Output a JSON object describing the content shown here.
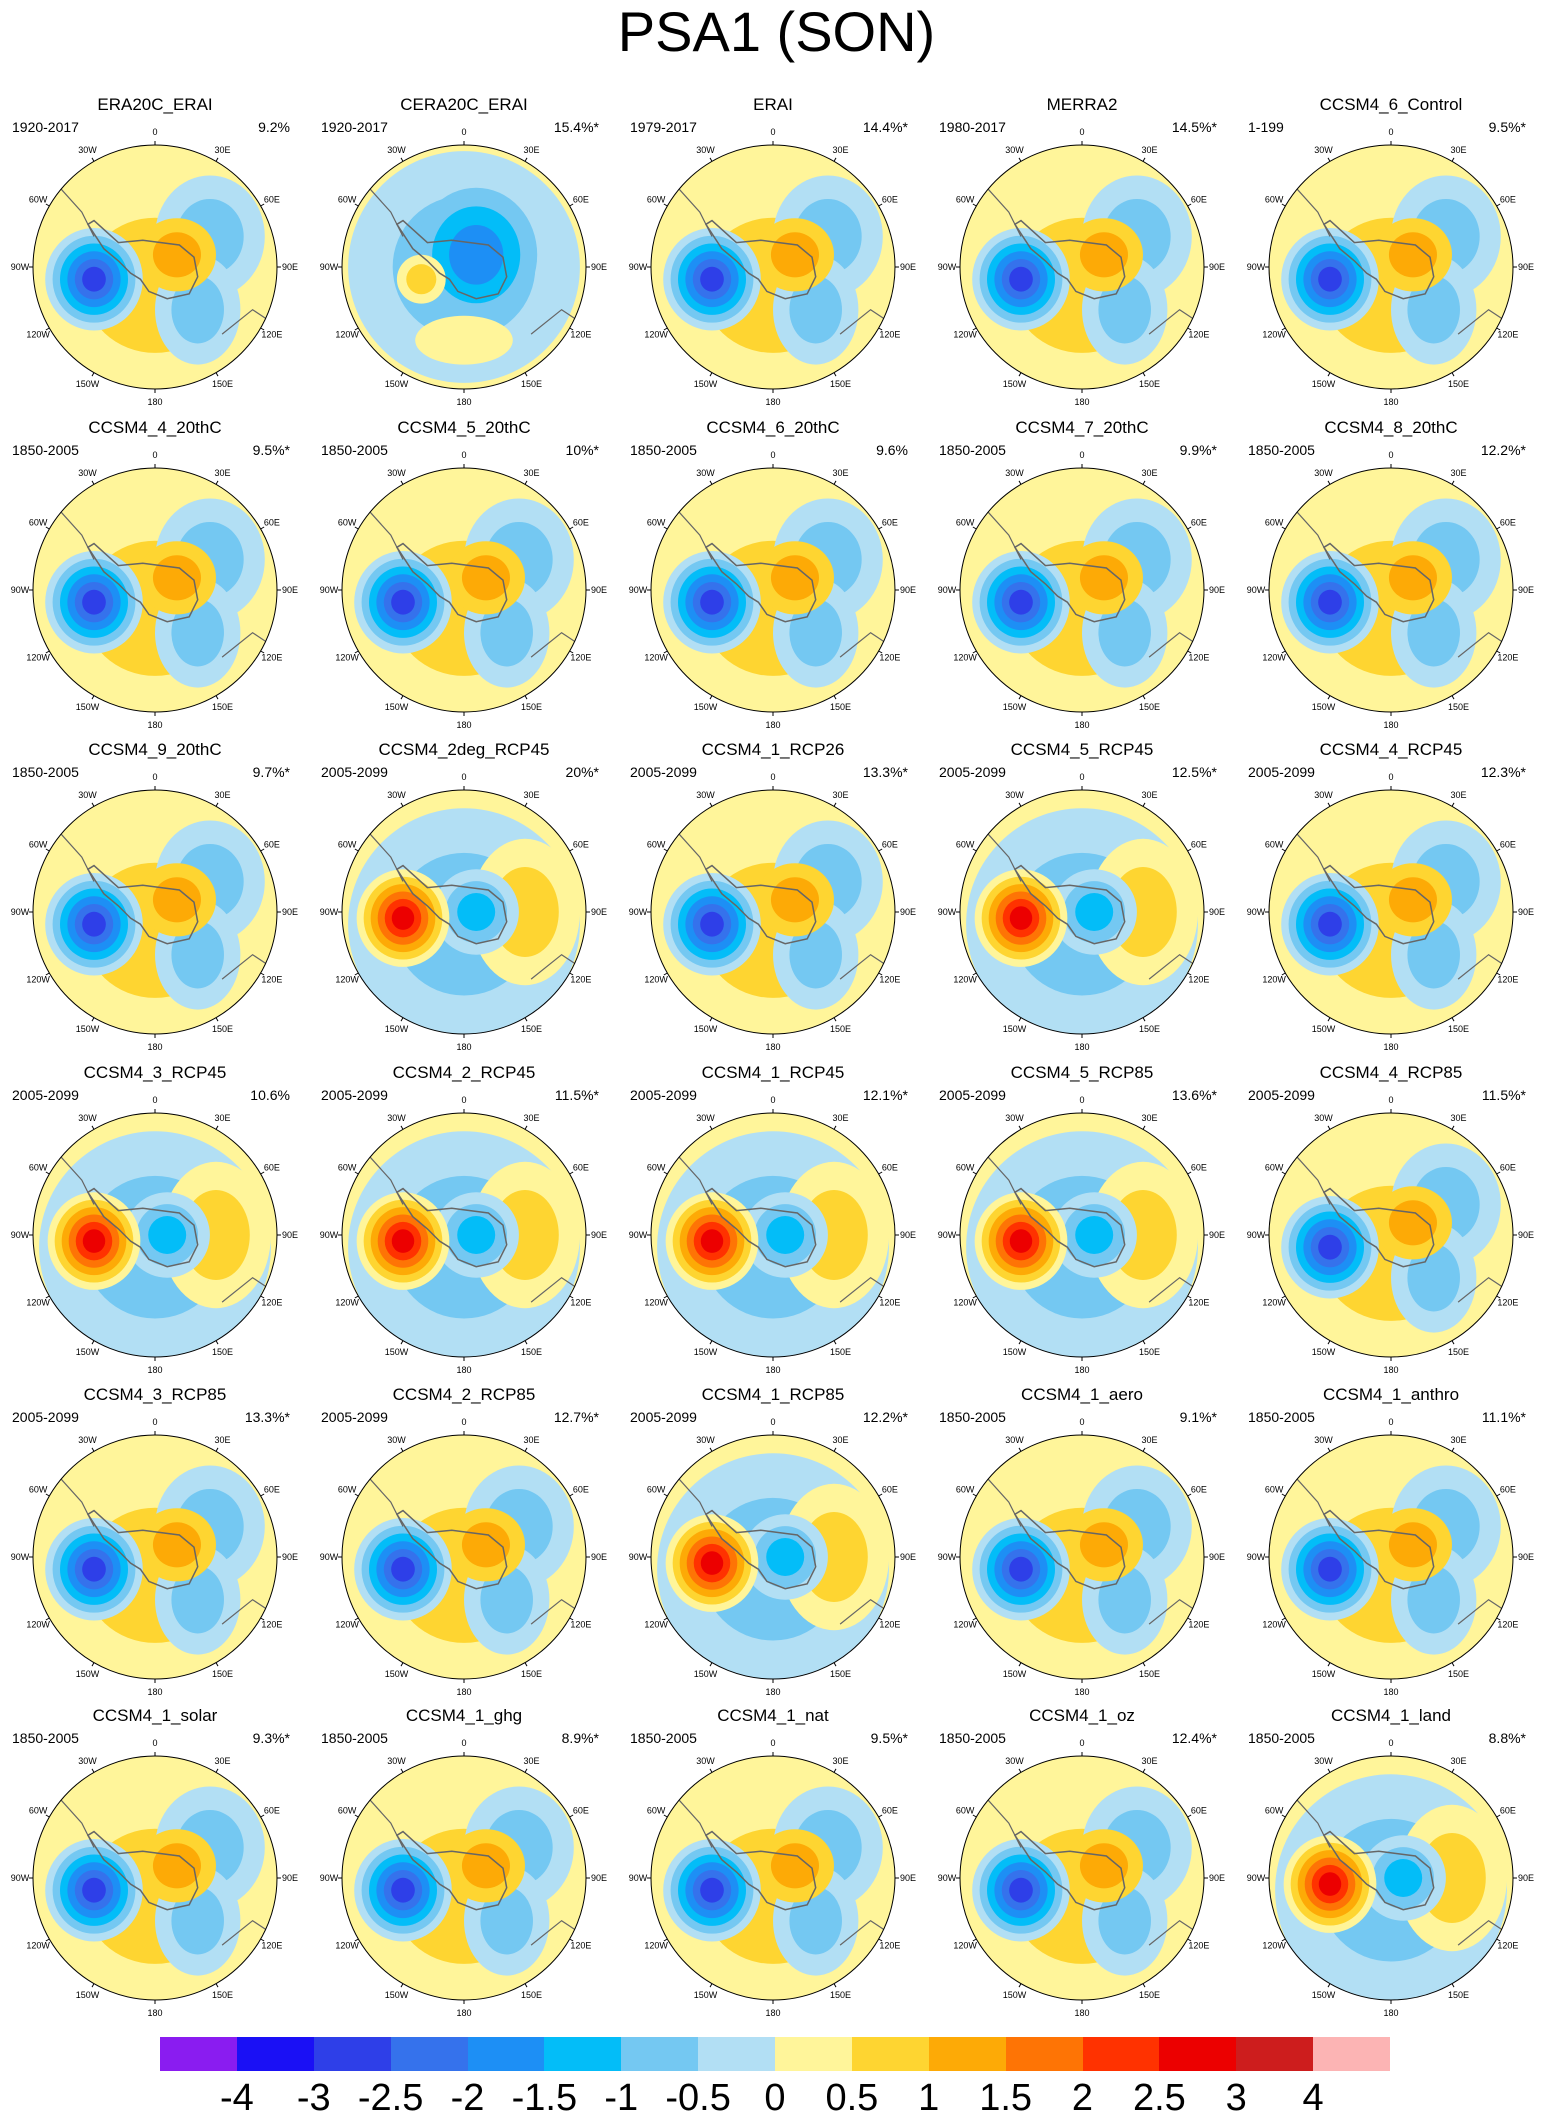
{
  "title": "PSA1 (SON)",
  "lon_labels": [
    "0",
    "30E",
    "60E",
    "90E",
    "120E",
    "150E",
    "180",
    "150W",
    "120W",
    "90W",
    "60W",
    "30W"
  ],
  "panels": [
    {
      "name": "ERA20C_ERAI",
      "period": "1920-2017",
      "variance": "9.2%",
      "pattern": "neg"
    },
    {
      "name": "CERA20C_ERAI",
      "period": "1920-2017",
      "variance": "15.4%*",
      "pattern": "weak"
    },
    {
      "name": "ERAI",
      "period": "1979-2017",
      "variance": "14.4%*",
      "pattern": "neg"
    },
    {
      "name": "MERRA2",
      "period": "1980-2017",
      "variance": "14.5%*",
      "pattern": "neg"
    },
    {
      "name": "CCSM4_6_Control",
      "period": "1-199",
      "variance": "9.5%*",
      "pattern": "neg"
    },
    {
      "name": "CCSM4_4_20thC",
      "period": "1850-2005",
      "variance": "9.5%*",
      "pattern": "neg"
    },
    {
      "name": "CCSM4_5_20thC",
      "period": "1850-2005",
      "variance": "10%*",
      "pattern": "neg"
    },
    {
      "name": "CCSM4_6_20thC",
      "period": "1850-2005",
      "variance": "9.6%",
      "pattern": "neg"
    },
    {
      "name": "CCSM4_7_20thC",
      "period": "1850-2005",
      "variance": "9.9%*",
      "pattern": "neg"
    },
    {
      "name": "CCSM4_8_20thC",
      "period": "1850-2005",
      "variance": "12.2%*",
      "pattern": "neg"
    },
    {
      "name": "CCSM4_9_20thC",
      "period": "1850-2005",
      "variance": "9.7%*",
      "pattern": "neg"
    },
    {
      "name": "CCSM4_2deg_RCP45",
      "period": "2005-2099",
      "variance": "20%*",
      "pattern": "pos"
    },
    {
      "name": "CCSM4_1_RCP26",
      "period": "2005-2099",
      "variance": "13.3%*",
      "pattern": "neg"
    },
    {
      "name": "CCSM4_5_RCP45",
      "period": "2005-2099",
      "variance": "12.5%*",
      "pattern": "pos"
    },
    {
      "name": "CCSM4_4_RCP45",
      "period": "2005-2099",
      "variance": "12.3%*",
      "pattern": "neg"
    },
    {
      "name": "CCSM4_3_RCP45",
      "period": "2005-2099",
      "variance": "10.6%",
      "pattern": "pos"
    },
    {
      "name": "CCSM4_2_RCP45",
      "period": "2005-2099",
      "variance": "11.5%*",
      "pattern": "pos"
    },
    {
      "name": "CCSM4_1_RCP45",
      "period": "2005-2099",
      "variance": "12.1%*",
      "pattern": "pos"
    },
    {
      "name": "CCSM4_5_RCP85",
      "period": "2005-2099",
      "variance": "13.6%*",
      "pattern": "pos"
    },
    {
      "name": "CCSM4_4_RCP85",
      "period": "2005-2099",
      "variance": "11.5%*",
      "pattern": "neg"
    },
    {
      "name": "CCSM4_3_RCP85",
      "period": "2005-2099",
      "variance": "13.3%*",
      "pattern": "neg"
    },
    {
      "name": "CCSM4_2_RCP85",
      "period": "2005-2099",
      "variance": "12.7%*",
      "pattern": "neg"
    },
    {
      "name": "CCSM4_1_RCP85",
      "period": "2005-2099",
      "variance": "12.2%*",
      "pattern": "pos"
    },
    {
      "name": "CCSM4_1_aero",
      "period": "1850-2005",
      "variance": "9.1%*",
      "pattern": "neg"
    },
    {
      "name": "CCSM4_1_anthro",
      "period": "1850-2005",
      "variance": "11.1%*",
      "pattern": "neg"
    },
    {
      "name": "CCSM4_1_solar",
      "period": "1850-2005",
      "variance": "9.3%*",
      "pattern": "neg"
    },
    {
      "name": "CCSM4_1_ghg",
      "period": "1850-2005",
      "variance": "8.9%*",
      "pattern": "neg"
    },
    {
      "name": "CCSM4_1_nat",
      "period": "1850-2005",
      "variance": "9.5%*",
      "pattern": "neg"
    },
    {
      "name": "CCSM4_1_oz",
      "period": "1850-2005",
      "variance": "12.4%*",
      "pattern": "neg"
    },
    {
      "name": "CCSM4_1_land",
      "period": "1850-2005",
      "variance": "8.8%*",
      "pattern": "pos"
    }
  ],
  "colorbar": {
    "labels": [
      "-4",
      "-3",
      "-2.5",
      "-2",
      "-1.5",
      "-1",
      "-0.5",
      "0",
      "0.5",
      "1",
      "1.5",
      "2",
      "2.5",
      "3",
      "4"
    ],
    "colors": [
      "#8a1cf0",
      "#1a10f5",
      "#2e3fe8",
      "#3572ec",
      "#1d8ff5",
      "#03bdf8",
      "#74c8f2",
      "#b2dff4",
      "#fff59a",
      "#fed531",
      "#fdaa06",
      "#fe7405",
      "#ff3200",
      "#ec0000",
      "#cd1d1d",
      "#fcb4b4"
    ]
  }
}
